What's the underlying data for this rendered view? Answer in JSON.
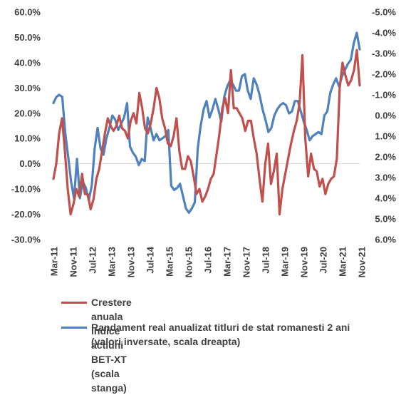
{
  "chart_data": {
    "type": "line",
    "x_tick_labels": [
      "Mar-11",
      "Nov-11",
      "Jul-12",
      "Mar-13",
      "Nov-13",
      "Jul-14",
      "Mar-15",
      "Nov-15",
      "Jul-16",
      "Mar-17",
      "Nov-17",
      "Jul-18",
      "Mar-19",
      "Nov-19",
      "Jul-20",
      "Mar-21",
      "Nov-21"
    ],
    "y_left": {
      "ticks": [
        "60.0%",
        "50.0%",
        "40.0%",
        "30.0%",
        "20.0%",
        "10.0%",
        "0.0%",
        "-10.0%",
        "-20.0%",
        "-30.0%"
      ],
      "range": [
        -30,
        60
      ]
    },
    "y_right": {
      "ticks": [
        "-5.0%",
        "-4.0%",
        "-3.0%",
        "-2.0%",
        "-1.0%",
        "0.0%",
        "1.0%",
        "2.0%",
        "3.0%",
        "4.0%",
        "5.0%",
        "6.0%"
      ],
      "range": [
        6,
        -5
      ],
      "inverted": true
    },
    "grid": false,
    "zero_line": true,
    "legend_position": "bottom",
    "series": [
      {
        "name": "Crestere anuala indice actiuni BET-XT (scala stanga)",
        "axis": "left",
        "color": "#c0504d",
        "values": [
          -6,
          0,
          12,
          18,
          5,
          -10,
          -20,
          -16,
          -10,
          -13,
          -4,
          -12,
          -12,
          -18,
          -14,
          -6,
          -2,
          5,
          12,
          18,
          15,
          13,
          15,
          19,
          14,
          13,
          10,
          17,
          20,
          16,
          28,
          22,
          14,
          12,
          16,
          22,
          30,
          26,
          18,
          14,
          8,
          7,
          11,
          18,
          5,
          -2,
          -2,
          3,
          1,
          -5,
          -12,
          -10,
          -15,
          -13,
          -10,
          -6,
          -4,
          4,
          12,
          22,
          26,
          20,
          37,
          22,
          22,
          20,
          18,
          13,
          17,
          17,
          10,
          4,
          -6,
          -15,
          0,
          8,
          -8,
          -3,
          4,
          -20,
          -10,
          -4,
          2,
          8,
          13,
          17,
          24,
          43,
          10,
          -5,
          4,
          -2,
          -3,
          -9,
          -6,
          -12,
          -8,
          -6,
          -5,
          2,
          30,
          40,
          35,
          31,
          33,
          37,
          45,
          31
        ],
        "label_values": [
          "60.0%",
          "50.0%"
        ]
      },
      {
        "name": "Randament real anualizat titluri de stat romanesti 2 ani (valori inversate, scala dreapta)",
        "axis": "right",
        "color": "#4f81bd",
        "values": [
          -0.6,
          -0.9,
          -1.0,
          -0.9,
          0.8,
          2.0,
          3.2,
          4.0,
          2.1,
          4.0,
          3.2,
          3.5,
          4.1,
          3.4,
          1.6,
          0.6,
          1.6,
          1.9,
          1.1,
          0.6,
          0.0,
          0.2,
          0.7,
          0.4,
          0.1,
          -0.6,
          1.5,
          1.8,
          2.0,
          2.4,
          2.1,
          2.2,
          0.1,
          0.6,
          1.2,
          0.9,
          1.2,
          1.1,
          1.0,
          0.7,
          3.4,
          3.6,
          3.5,
          3.3,
          3.9,
          4.5,
          4.7,
          4.5,
          4.2,
          1.6,
          0.5,
          -0.3,
          -0.7,
          0.1,
          -0.3,
          -0.8,
          -0.3,
          0.3,
          -0.9,
          -1.4,
          -1.7,
          -1.5,
          -1.2,
          -1.2,
          -1.9,
          -2.0,
          -1.2,
          -0.8,
          -1.8,
          -1.5,
          -1.0,
          -0.3,
          0.2,
          0.8,
          0.6,
          0.0,
          -0.3,
          -0.5,
          -0.6,
          -0.5,
          -0.1,
          -0.2,
          -0.7,
          -0.7,
          -0.2,
          0.3,
          0.7,
          1.2,
          1.0,
          0.9,
          0.8,
          0.9,
          0.0,
          -0.2,
          -1.1,
          -1.5,
          -1.8,
          -1.4,
          -1.9,
          -2.2,
          -2.5,
          -2.7,
          -3.5,
          -4.0,
          -3.2
        ],
        "label_values": [
          "-4.0%",
          "-3.0%"
        ]
      }
    ]
  }
}
